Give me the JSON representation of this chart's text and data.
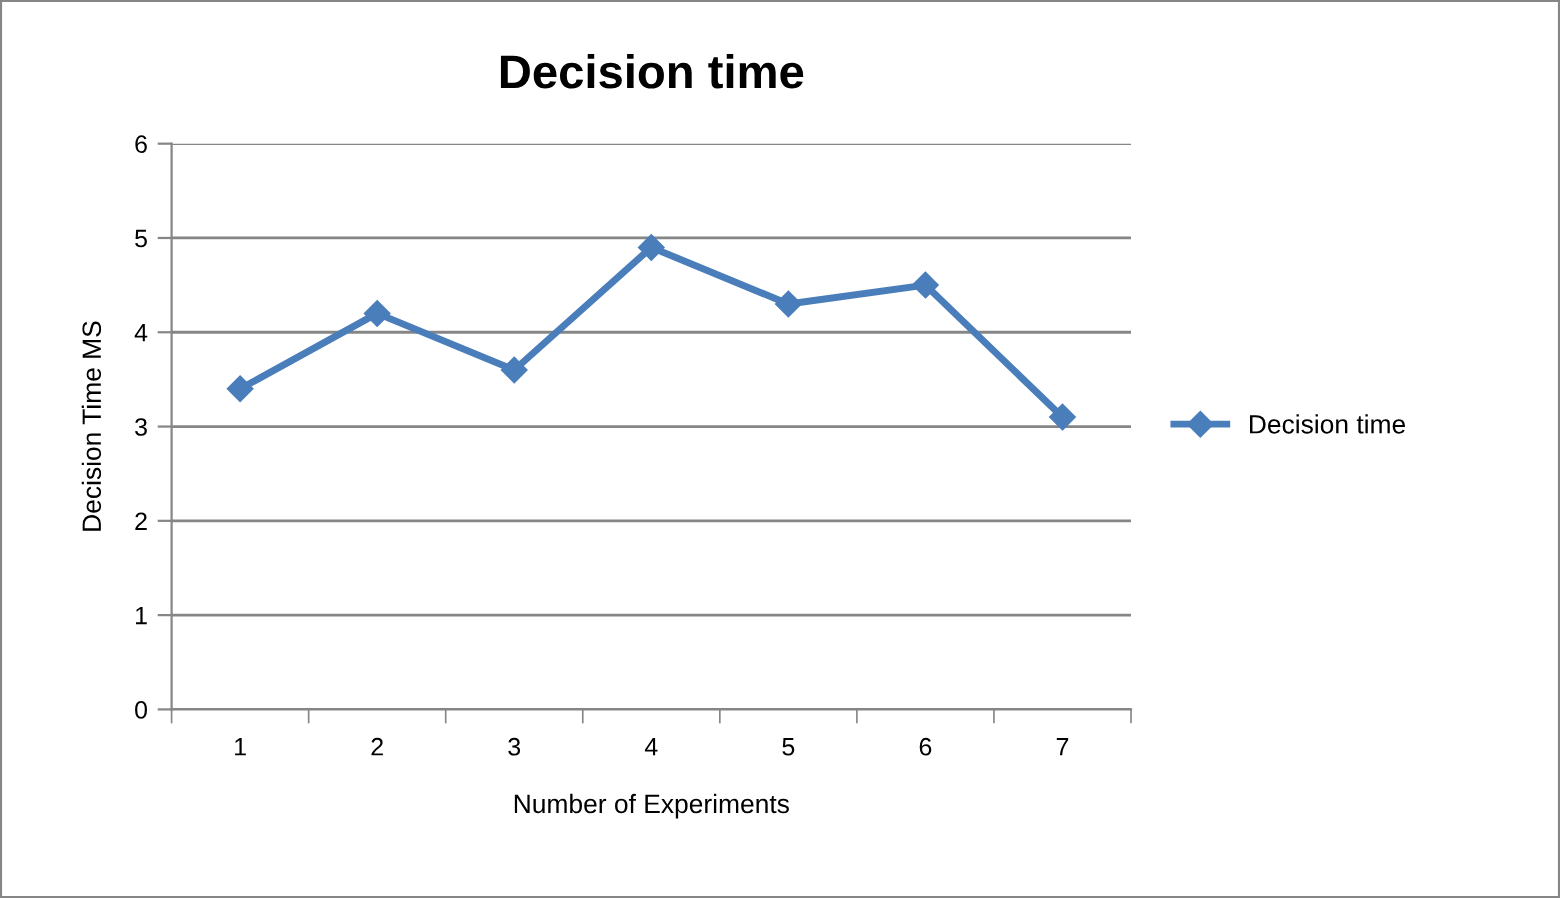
{
  "chart_data": {
    "type": "line",
    "title": "Decision time",
    "xlabel": "Number of Experiments",
    "ylabel": "Decision Time MS",
    "categories": [
      "1",
      "2",
      "3",
      "4",
      "5",
      "6",
      "7"
    ],
    "series": [
      {
        "name": "Decision time",
        "color": "#4a7ebb",
        "values": [
          3.4,
          4.2,
          3.6,
          4.9,
          4.3,
          4.5,
          3.1
        ]
      }
    ],
    "ylim": [
      0,
      6
    ],
    "yticks": [
      0,
      1,
      2,
      3,
      4,
      5,
      6
    ],
    "grid": "y",
    "legend": "right",
    "marker": "diamond",
    "line_style": "solid"
  }
}
